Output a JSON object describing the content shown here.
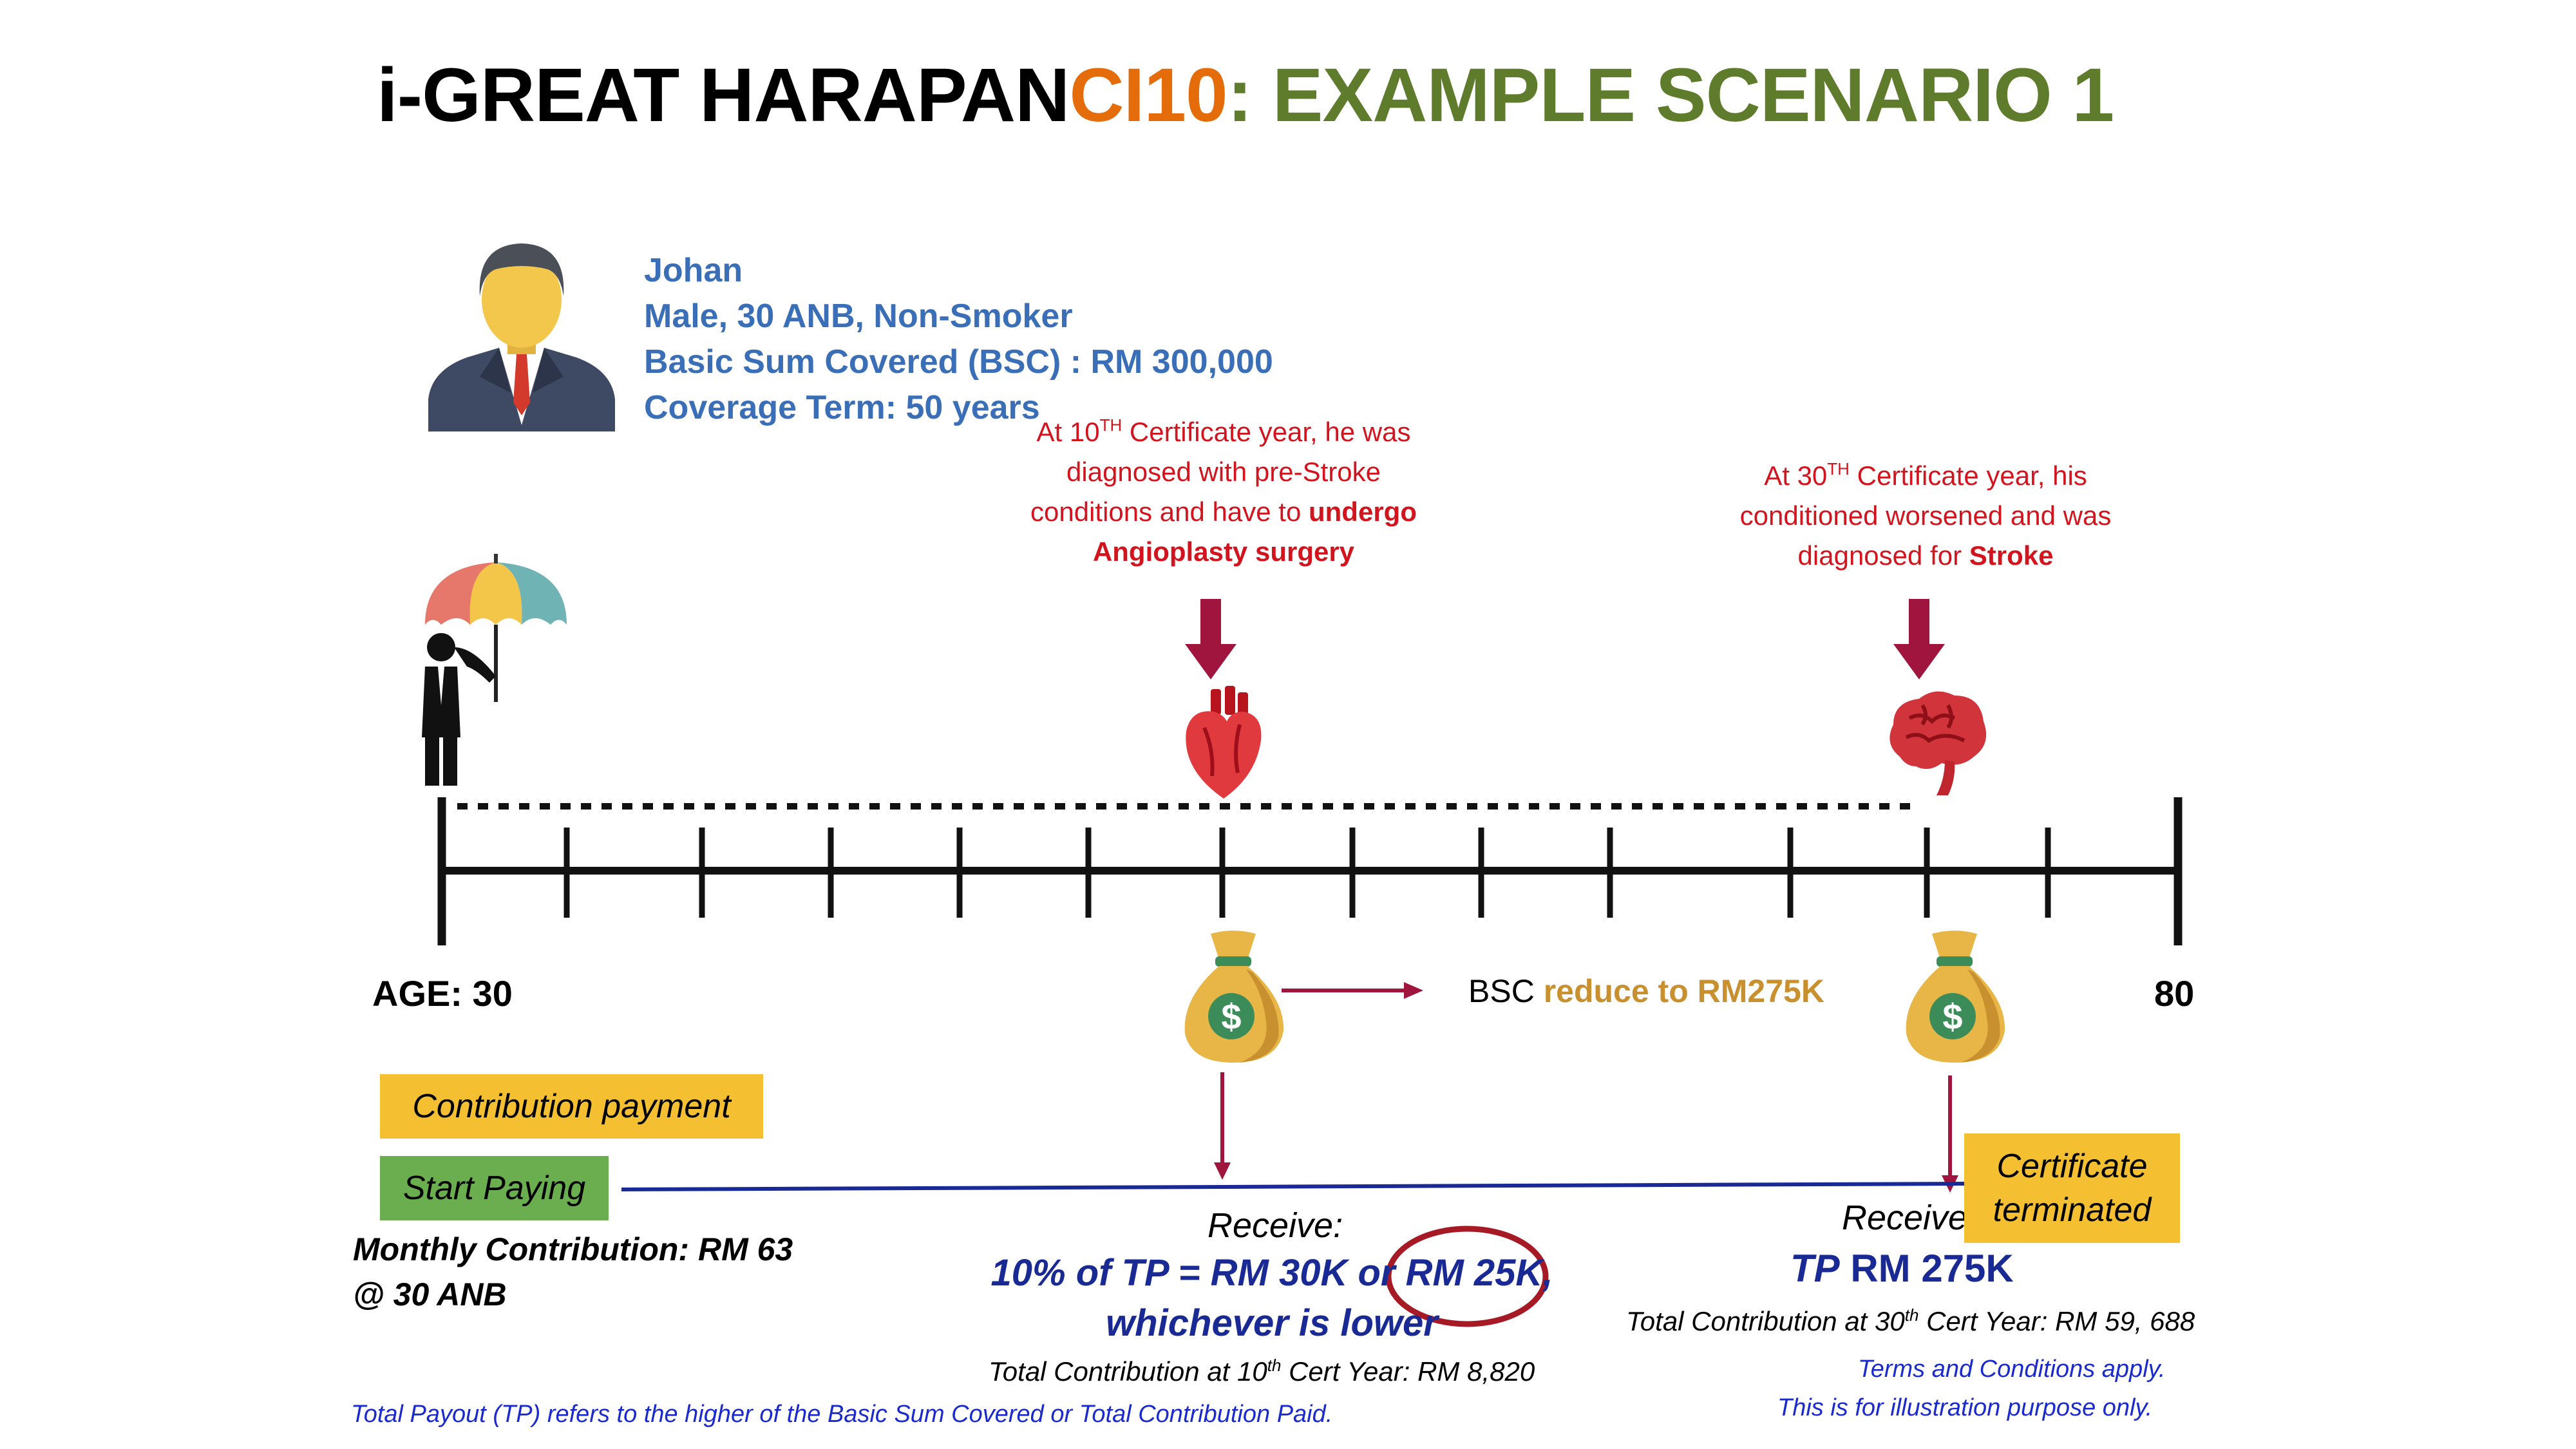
{
  "title": {
    "part1": "i-GREAT HARAPAN",
    "part2": "CI10",
    "part3": ": EXAMPLE SCENARIO 1"
  },
  "profile": {
    "name": "Johan",
    "details": "Male, 30 ANB, Non-Smoker",
    "sum_covered": "Basic Sum Covered (BSC) : RM 300,000",
    "term": "Coverage Term: 50 years"
  },
  "event1": {
    "line1_pre": "At 10",
    "line1_sup": "TH",
    "line1_post": " Certificate year, he was",
    "line2": "diagnosed with pre-Stroke",
    "line3_pre": "conditions and have to ",
    "line3_bold": "undergo",
    "line4_bold": "Angioplasty surgery"
  },
  "event2": {
    "line1_pre": "At 30",
    "line1_sup": "TH",
    "line1_post": " Certificate year, his",
    "line2": "conditioned worsened and was",
    "line3_pre": "diagnosed for ",
    "line3_bold": "Stroke"
  },
  "timeline": {
    "start_label": "AGE: 30",
    "end_label": "80"
  },
  "bsc_note": {
    "prefix": "BSC ",
    "highlight": "reduce to RM275K"
  },
  "tags": {
    "contribution": "Contribution payment",
    "start": "Start Paying"
  },
  "monthly": {
    "line1": "Monthly Contribution: RM 63",
    "line2": "@ 30 ANB"
  },
  "payout1": {
    "receive": "Receive:",
    "line1": "10% of TP = RM 30K or RM 25K,",
    "line2": "whichever is lower",
    "total": "Total Contribution at 10",
    "total_sup": "th",
    "total_post": " Cert Year: RM 8,820"
  },
  "payout2": {
    "receive": "Receive",
    "tp": "TP",
    "amount": " RM 275K",
    "total": "Total Contribution at 30",
    "total_sup": "th",
    "total_post": " Cert Year: RM 59, 688"
  },
  "certificate": {
    "line1": "Certificate",
    "line2": "terminated"
  },
  "footnotes": {
    "tp_def": "Total Payout (TP) refers to the higher of the Basic Sum Covered or Total Contribution Paid.",
    "terms": "Terms and Conditions apply.",
    "illustration": "This is for illustration purpose only."
  },
  "colors": {
    "title_orange": "#E46C0A",
    "title_olive": "#5E7C2B",
    "profile_blue": "#3A6FB8",
    "event_red": "#D2141E",
    "payout_navy": "#1A2A95",
    "tag_yellow": "#F4C032",
    "tag_green": "#6AAE4F",
    "bsc_gold": "#C8902E",
    "arrow_crimson": "#A0153E"
  },
  "icons": [
    "businessman-avatar-icon",
    "umbrella-man-icon",
    "heart-icon",
    "brain-icon",
    "money-bag-icon"
  ]
}
